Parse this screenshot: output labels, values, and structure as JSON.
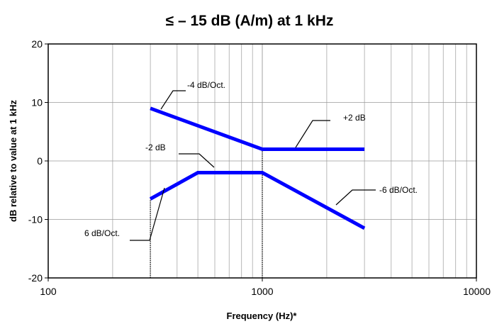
{
  "chart_data": {
    "type": "line",
    "title": "≤  – 15 dB (A/m) at 1 kHz",
    "xlabel": "Frequency (Hz)*",
    "ylabel": "dB relative to value at 1 kHz",
    "x_scale": "log",
    "xlim": [
      100,
      10000
    ],
    "ylim": [
      -20,
      20
    ],
    "x_ticks": [
      {
        "value": 100,
        "label": "100"
      },
      {
        "value": 1000,
        "label": "1000"
      },
      {
        "value": 10000,
        "label": "10000"
      }
    ],
    "y_ticks": [
      {
        "value": 20,
        "label": "20"
      },
      {
        "value": 10,
        "label": "10"
      },
      {
        "value": 0,
        "label": "0"
      },
      {
        "value": -10,
        "label": "-10"
      },
      {
        "value": -20,
        "label": "-20"
      }
    ],
    "grid": true,
    "series": [
      {
        "x": [
          300,
          1000,
          3000
        ],
        "y": [
          9,
          2,
          2
        ],
        "color": "#0000ff"
      },
      {
        "x": [
          300,
          500,
          1000,
          3000
        ],
        "y": [
          -6.5,
          -2,
          -2,
          -11.5
        ],
        "color": "#0000ff"
      }
    ],
    "annotations": [
      {
        "text": "-4 dB/Oct."
      },
      {
        "text": "+2 dB"
      },
      {
        "text": "-2 dB"
      },
      {
        "text": "-6 dB/Oct."
      },
      {
        "text": "6 dB/Oct."
      }
    ],
    "reference_lines": [
      {
        "x": 300,
        "y_from": -20,
        "y_to": -6.5,
        "style": "dotted"
      },
      {
        "x": 1000,
        "y_from": -20,
        "y_to": 2,
        "style": "dotted"
      }
    ]
  }
}
